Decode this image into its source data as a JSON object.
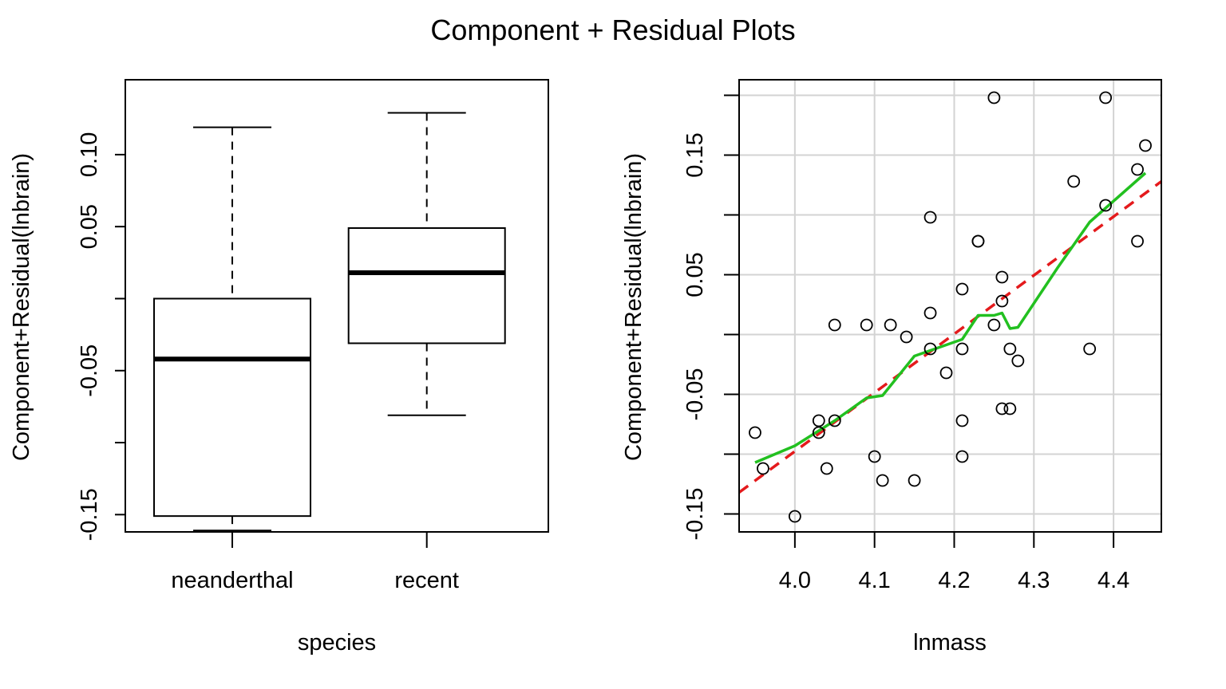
{
  "figure": {
    "title": "Component + Residual Plots"
  },
  "colors": {
    "axis": "#000000",
    "grid": "#d3d3d3",
    "fit_line": "#e41a1c",
    "smooth_line": "#22c020"
  },
  "chart_data": [
    {
      "type": "box",
      "title": "",
      "xlabel": "species",
      "ylabel": "Component+Residual(lnbrain)",
      "categories": [
        "neanderthal",
        "recent"
      ],
      "ylim": [
        -0.162,
        0.152
      ],
      "yticks": [
        -0.15,
        -0.1,
        -0.05,
        0,
        0.05,
        0.1
      ],
      "yticklabels": [
        "-0.15",
        "",
        "-0.05",
        "",
        "0.05",
        "0.10"
      ],
      "boxes": [
        {
          "name": "neanderthal",
          "min": -0.161,
          "q1": -0.151,
          "median": -0.042,
          "q3": 0.0,
          "max": 0.119
        },
        {
          "name": "recent",
          "min": -0.081,
          "q1": -0.031,
          "median": 0.018,
          "q3": 0.049,
          "max": 0.129
        }
      ]
    },
    {
      "type": "scatter",
      "title": "",
      "xlabel": "lnmass",
      "ylabel": "Component+Residual(lnbrain)",
      "xlim": [
        3.93,
        4.46
      ],
      "ylim": [
        -0.165,
        0.213
      ],
      "xticks": [
        4.0,
        4.1,
        4.2,
        4.3,
        4.4
      ],
      "xticklabels": [
        "4.0",
        "4.1",
        "4.2",
        "4.3",
        "4.4"
      ],
      "yticks": [
        -0.15,
        -0.1,
        -0.05,
        0,
        0.05,
        0.1,
        0.15,
        0.2
      ],
      "yticklabels": [
        "-0.15",
        "",
        "-0.05",
        "",
        "0.05",
        "",
        "0.15",
        ""
      ],
      "grid": true,
      "points": [
        {
          "x": 3.95,
          "y": -0.082
        },
        {
          "x": 3.96,
          "y": -0.112
        },
        {
          "x": 4.0,
          "y": -0.152
        },
        {
          "x": 4.03,
          "y": -0.072
        },
        {
          "x": 4.03,
          "y": -0.082
        },
        {
          "x": 4.04,
          "y": -0.112
        },
        {
          "x": 4.05,
          "y": -0.072
        },
        {
          "x": 4.05,
          "y": 0.008
        },
        {
          "x": 4.09,
          "y": 0.008
        },
        {
          "x": 4.1,
          "y": -0.102
        },
        {
          "x": 4.11,
          "y": -0.122
        },
        {
          "x": 4.12,
          "y": 0.008
        },
        {
          "x": 4.14,
          "y": -0.002
        },
        {
          "x": 4.15,
          "y": -0.122
        },
        {
          "x": 4.17,
          "y": 0.098
        },
        {
          "x": 4.17,
          "y": 0.018
        },
        {
          "x": 4.17,
          "y": -0.012
        },
        {
          "x": 4.19,
          "y": -0.032
        },
        {
          "x": 4.21,
          "y": 0.038
        },
        {
          "x": 4.21,
          "y": -0.012
        },
        {
          "x": 4.21,
          "y": -0.072
        },
        {
          "x": 4.21,
          "y": -0.102
        },
        {
          "x": 4.23,
          "y": 0.078
        },
        {
          "x": 4.23,
          "y": 0.078
        },
        {
          "x": 4.25,
          "y": 0.198
        },
        {
          "x": 4.25,
          "y": 0.008
        },
        {
          "x": 4.26,
          "y": 0.048
        },
        {
          "x": 4.26,
          "y": 0.028
        },
        {
          "x": 4.26,
          "y": -0.062
        },
        {
          "x": 4.27,
          "y": -0.012
        },
        {
          "x": 4.27,
          "y": -0.062
        },
        {
          "x": 4.28,
          "y": -0.022
        },
        {
          "x": 4.35,
          "y": 0.128
        },
        {
          "x": 4.37,
          "y": -0.012
        },
        {
          "x": 4.39,
          "y": 0.198
        },
        {
          "x": 4.39,
          "y": 0.108
        },
        {
          "x": 4.43,
          "y": 0.138
        },
        {
          "x": 4.43,
          "y": 0.078
        },
        {
          "x": 4.44,
          "y": 0.158
        }
      ],
      "fit_line": [
        {
          "x": 3.93,
          "y": -0.132
        },
        {
          "x": 4.46,
          "y": 0.128
        }
      ],
      "smooth_line": [
        {
          "x": 3.95,
          "y": -0.107
        },
        {
          "x": 4.0,
          "y": -0.093
        },
        {
          "x": 4.05,
          "y": -0.072
        },
        {
          "x": 4.09,
          "y": -0.053
        },
        {
          "x": 4.11,
          "y": -0.051
        },
        {
          "x": 4.15,
          "y": -0.018
        },
        {
          "x": 4.21,
          "y": -0.004
        },
        {
          "x": 4.23,
          "y": 0.016
        },
        {
          "x": 4.25,
          "y": 0.016
        },
        {
          "x": 4.26,
          "y": 0.018
        },
        {
          "x": 4.27,
          "y": 0.005
        },
        {
          "x": 4.28,
          "y": 0.006
        },
        {
          "x": 4.33,
          "y": 0.056
        },
        {
          "x": 4.37,
          "y": 0.094
        },
        {
          "x": 4.44,
          "y": 0.135
        }
      ]
    }
  ]
}
